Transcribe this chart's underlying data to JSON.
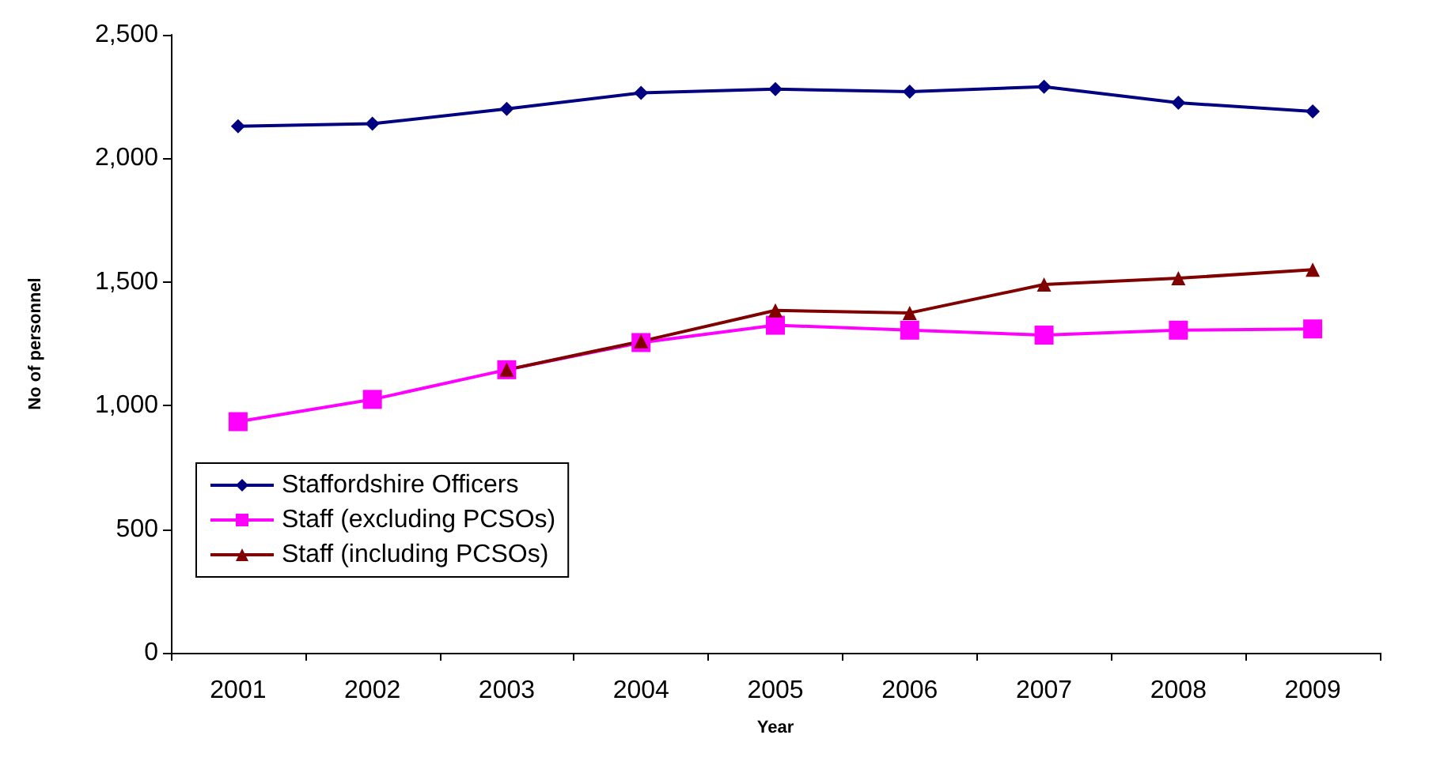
{
  "chart_data": {
    "type": "line",
    "xlabel": "Year",
    "ylabel": "No of personnel",
    "categories": [
      "2001",
      "2002",
      "2003",
      "2004",
      "2005",
      "2006",
      "2007",
      "2008",
      "2009"
    ],
    "series": [
      {
        "name": "Staffordshire Officers",
        "color": "#000080",
        "marker": "diamond",
        "values": [
          2130,
          2140,
          2200,
          2265,
          2280,
          2270,
          2290,
          2225,
          2190
        ]
      },
      {
        "name": "Staff (excluding PCSOs)",
        "color": "#ff00ff",
        "marker": "square",
        "values": [
          935,
          1025,
          1145,
          1255,
          1325,
          1305,
          1285,
          1305,
          1310
        ]
      },
      {
        "name": "Staff (including PCSOs)",
        "color": "#800000",
        "marker": "triangle",
        "values": [
          null,
          null,
          1145,
          1260,
          1385,
          1375,
          1490,
          1515,
          1550
        ]
      }
    ],
    "ylim": [
      0,
      2500
    ],
    "yticks": [
      0,
      {
        "value": 500,
        "label": "500"
      },
      {
        "value": 1000,
        "label": "1,000"
      },
      {
        "value": 1500,
        "label": "1,500"
      },
      {
        "value": 2000,
        "label": "2,000"
      },
      {
        "value": 2500,
        "label": "2,500"
      }
    ],
    "grid": false,
    "legend": "left",
    "line_style": "solid"
  }
}
